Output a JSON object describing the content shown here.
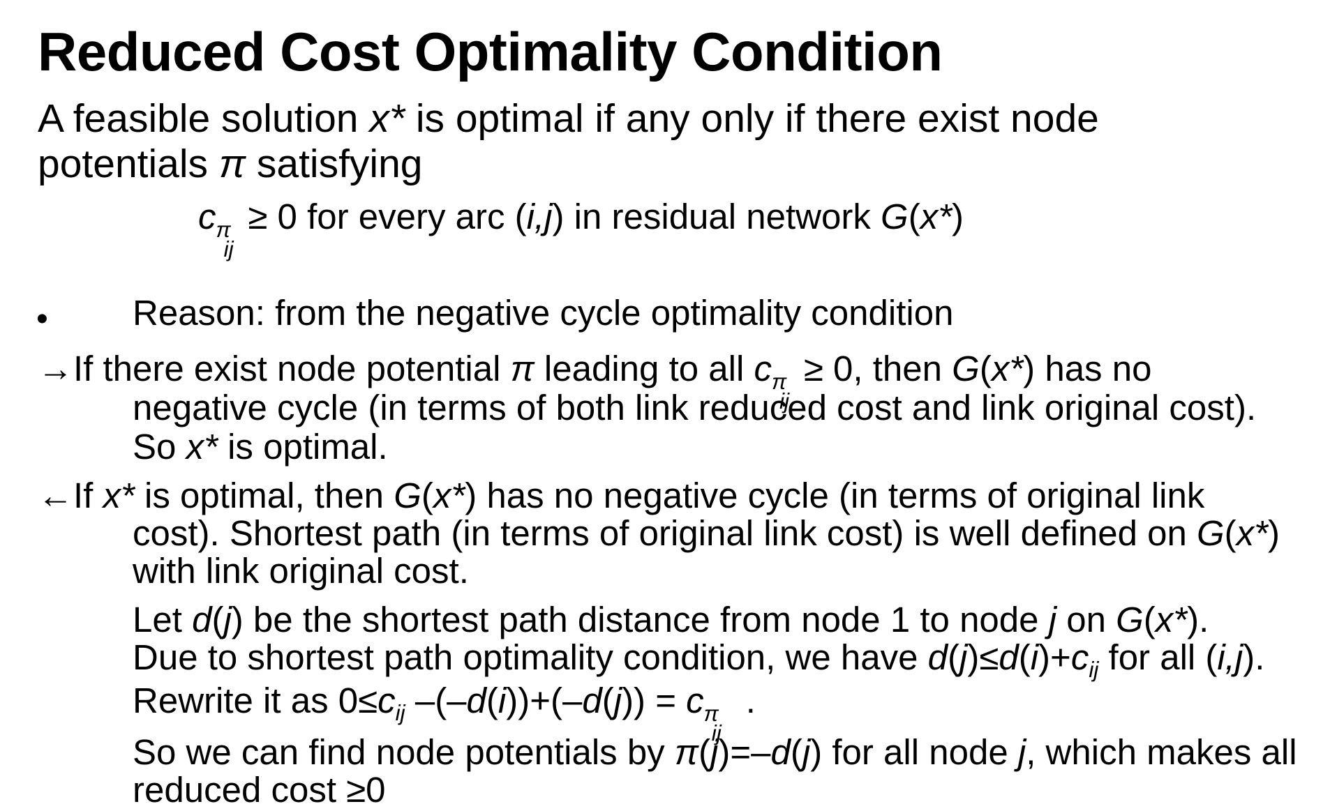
{
  "title": "Reduced Cost Optimality Condition",
  "statement": {
    "line1_a": "A feasible solution ",
    "line1_var": "x*",
    "line1_b": " is optimal if any only if there exist node",
    "line2_a": "potentials ",
    "line2_pi": "π",
    "line2_b": " satisfying"
  },
  "condition": {
    "c": "c",
    "sup": "π",
    "sub": "ij",
    "text1": "≥ 0 for every arc (",
    "ij": "i,j",
    "text2": ") in residual network ",
    "G": "G",
    "open": "(",
    "x": "x*",
    "close": ")"
  },
  "bullet": {
    "symbol": "•",
    "text": "Reason: from the negative cycle optimality condition"
  },
  "forward": {
    "arrow": "→",
    "l1_a": "If there exist node potential ",
    "l1_pi": "π",
    "l1_b": " leading to all ",
    "l1_c": "c",
    "l1_sup": "π",
    "l1_sub": "ij",
    "l1_c2": "≥ 0, then ",
    "l1_G": "G",
    "l1_open": "(",
    "l1_x": "x*",
    "l1_close": ") has no",
    "l2": "negative cycle (in terms of both link reduced cost and link original cost).",
    "l3_a": "So ",
    "l3_x": "x*",
    "l3_b": " is optimal."
  },
  "backward": {
    "arrow": "←",
    "l1_a": "If ",
    "l1_x": "x*",
    "l1_b": " is optimal, then ",
    "l1_G": "G",
    "l1_open": "(",
    "l1_x2": "x*",
    "l1_c": ") has no negative cycle (in terms of original link",
    "l2_a": "cost).  Shortest path (in terms of original link cost) is well defined on ",
    "l2_G": "G",
    "l2_open": "(",
    "l2_x": "x*",
    "l2_close": ")",
    "l3": "with link original cost.",
    "l4_a": "Let ",
    "l4_d": "d",
    "l4_open": "(",
    "l4_j": "j",
    "l4_b": ") be the shortest path distance from node 1 to node ",
    "l4_j2": "j",
    "l4_c": " on ",
    "l4_G": "G",
    "l4_open2": "(",
    "l4_x": "x*",
    "l4_close": ").",
    "l5_a": "Due to shortest path optimality condition, we have ",
    "l5_d": "d",
    "l5_open": "(",
    "l5_j": "j",
    "l5_le": ")≤",
    "l5_d2": "d",
    "l5_open2": "(",
    "l5_i": "i",
    "l5_plus": ")+",
    "l5_c": "c",
    "l5_sub": "ij",
    "l5_b": " for all (",
    "l5_ij": "i,j",
    "l5_end": ").",
    "l6_a": "Rewrite it as 0≤",
    "l6_c": "c",
    "l6_sub": "ij",
    "l6_b": " –(–",
    "l6_d": "d",
    "l6_open": "(",
    "l6_i": "i",
    "l6_mid": "))+(–",
    "l6_d2": "d",
    "l6_open2": "(",
    "l6_j": "j",
    "l6_eq": ")) = ",
    "l6_c2": "c",
    "l6_sup": "π",
    "l6_sub2": "ij",
    "l6_end": " .",
    "l7_a": "So we can find node potentials by ",
    "l7_pi": "π",
    "l7_open": "(",
    "l7_j": "j",
    "l7_eq": ")=–",
    "l7_d": "d",
    "l7_open2": "(",
    "l7_j2": "j",
    "l7_b": ") for all node ",
    "l7_j3": "j",
    "l7_c": ", which makes all",
    "l8": "reduced cost ≥0"
  }
}
